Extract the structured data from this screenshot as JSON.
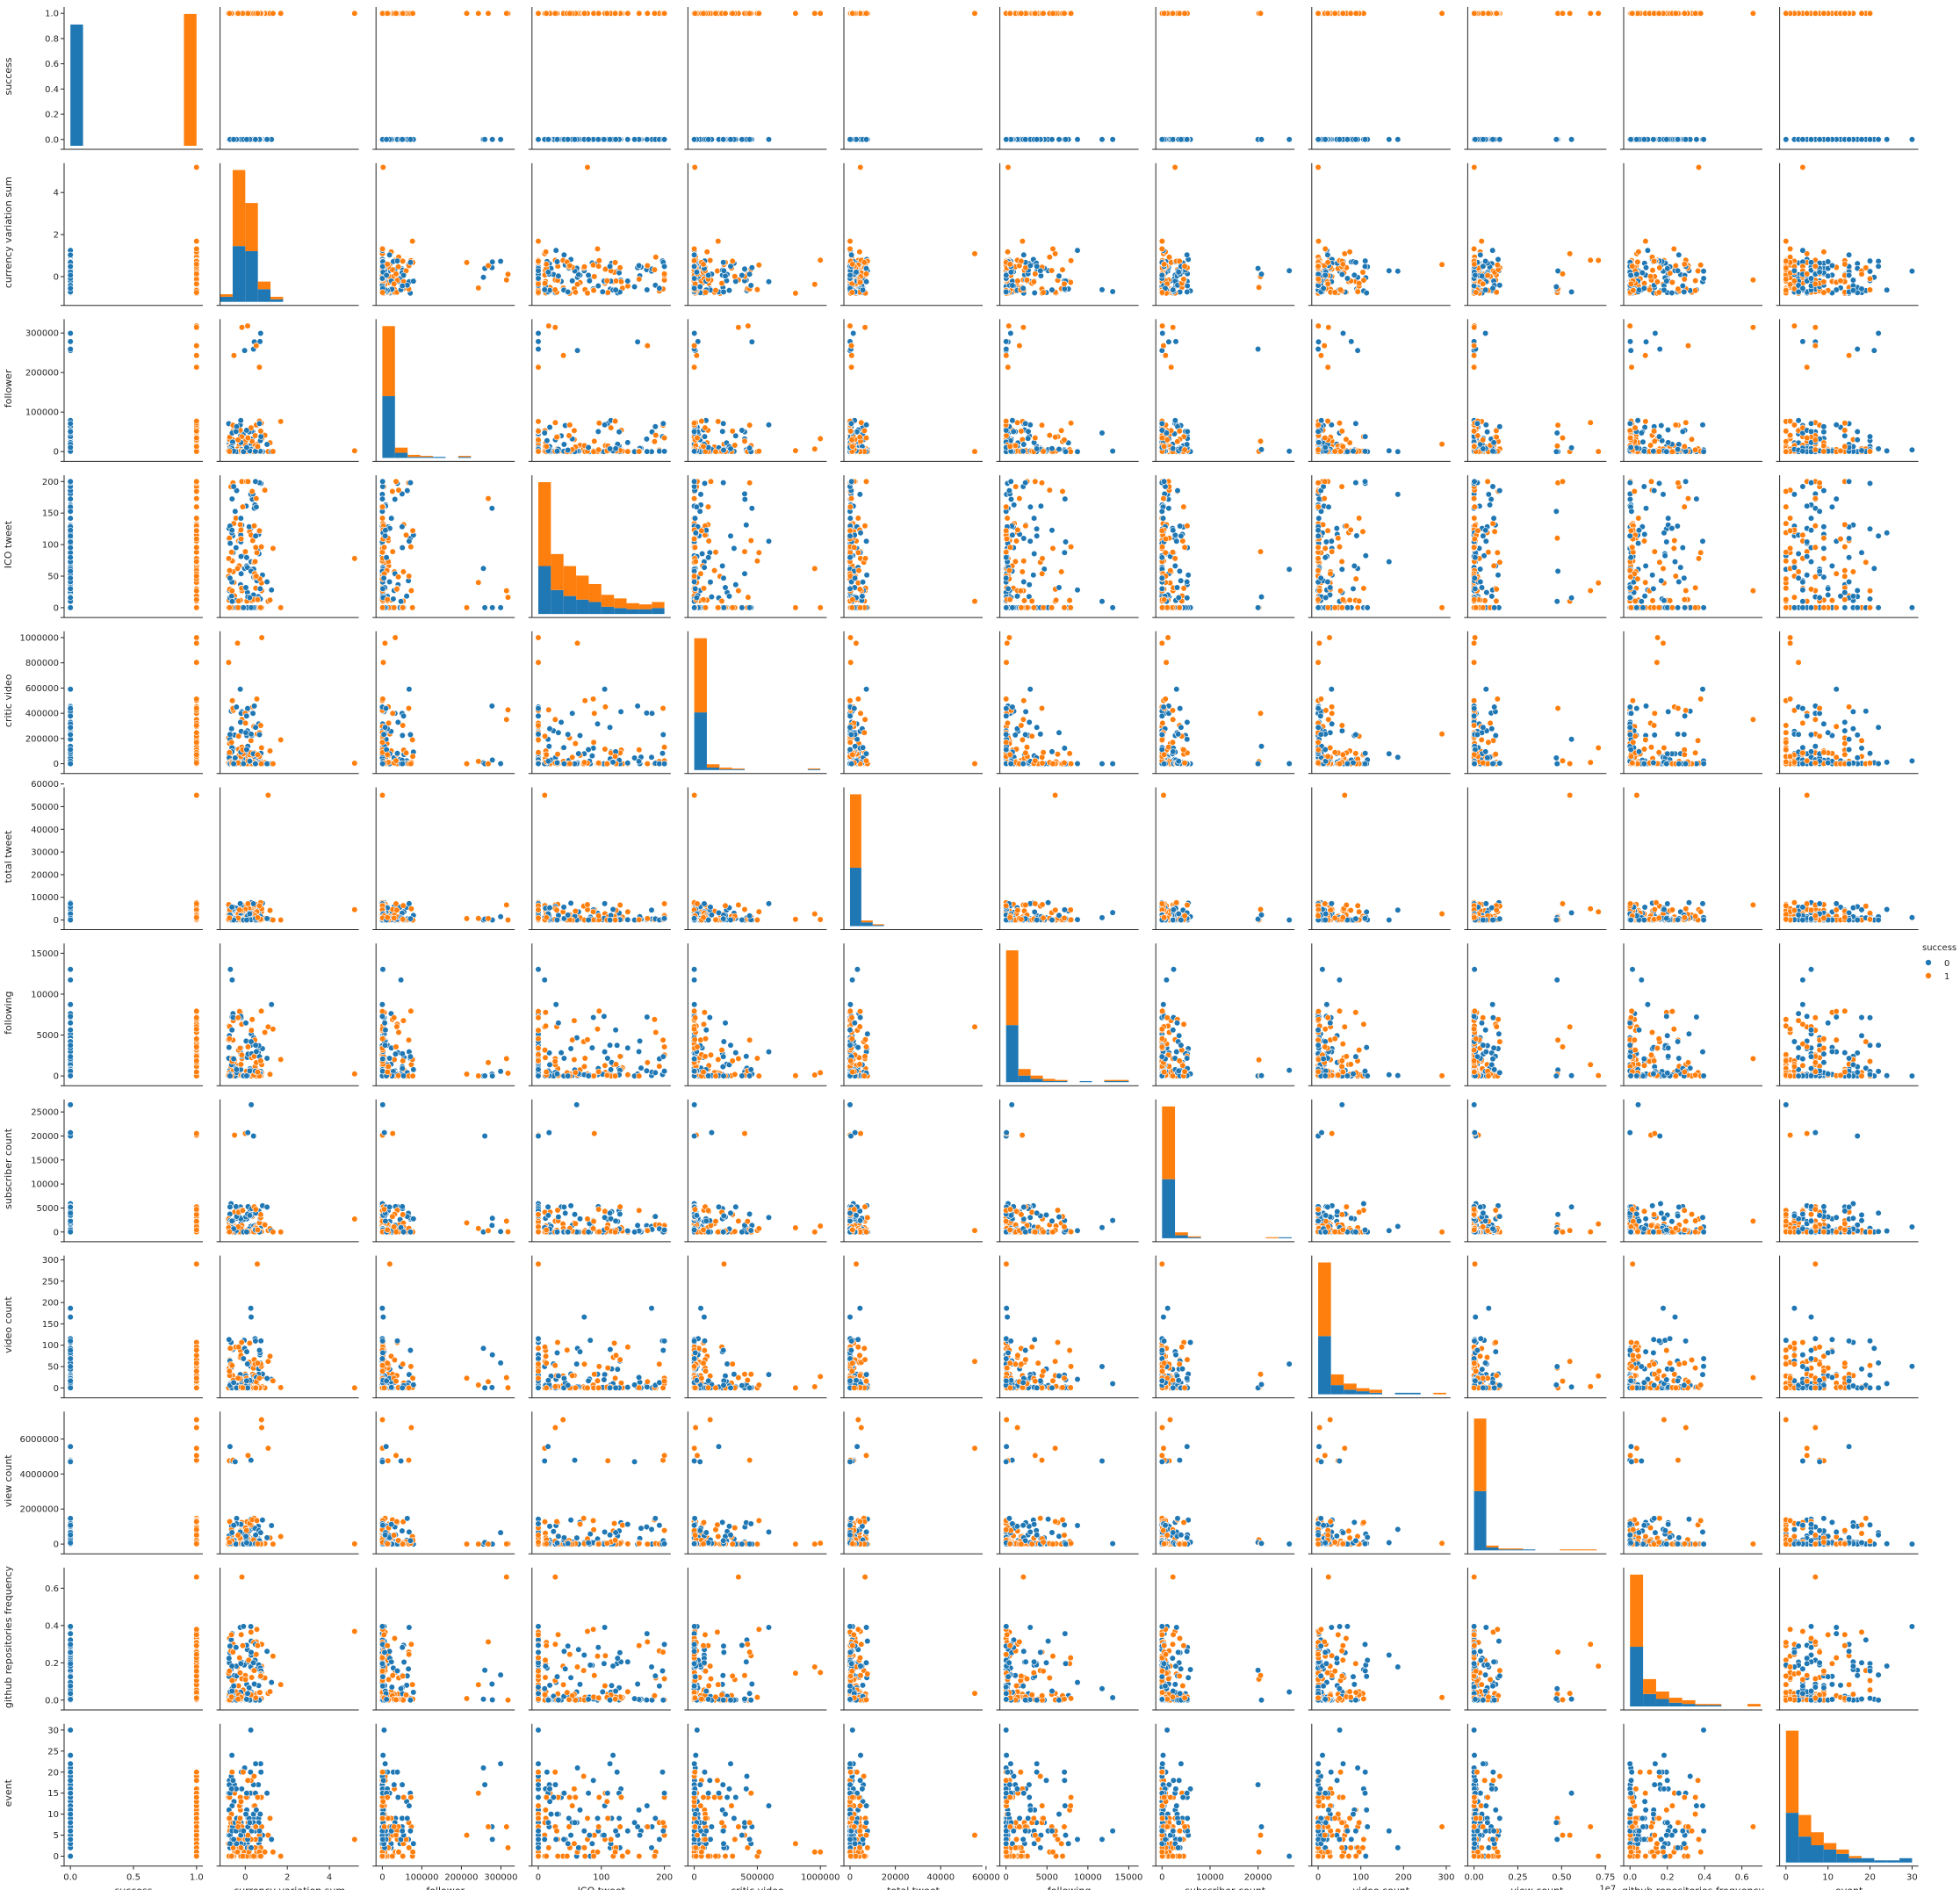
{
  "chart_data": {
    "type": "scatter",
    "kind": "pairplot",
    "diag_kind": "stacked histogram",
    "hue": "success",
    "variables": [
      "success",
      "currency variation sum",
      "follower",
      "ICO tweet",
      "critic video",
      "total tweet",
      "following",
      "subscriber count",
      "video count",
      "view count",
      "github repositories frequency",
      "event"
    ],
    "axes": [
      {
        "name": "success",
        "range": [
          -0.05,
          1.05
        ],
        "ticks": [
          0.0,
          0.2,
          0.4,
          0.6,
          0.8,
          1.0
        ],
        "tick_labels": [
          "0.0",
          "0.2",
          "0.4",
          "0.6",
          "0.8",
          "1.0"
        ],
        "xticks": [
          0.0,
          0.5,
          1.0
        ],
        "xtick_labels": [
          "0.0",
          "0.5",
          "1.0"
        ]
      },
      {
        "name": "currency variation sum",
        "range": [
          -1.2,
          5.4
        ],
        "ticks": [
          0,
          2,
          4
        ],
        "tick_labels": [
          "0",
          "2",
          "4"
        ]
      },
      {
        "name": "follower",
        "range": [
          -16000,
          335000
        ],
        "ticks": [
          0,
          100000,
          200000,
          300000
        ],
        "tick_labels": [
          "0",
          "100000",
          "200000",
          "300000"
        ]
      },
      {
        "name": "ICO tweet",
        "range": [
          -10,
          210
        ],
        "ticks": [
          0,
          50,
          100,
          150,
          200
        ],
        "tick_labels": [
          "0",
          "50",
          "100",
          "150",
          "200"
        ],
        "xticks": [
          0,
          100,
          200
        ],
        "xtick_labels": [
          "0",
          "100",
          "200"
        ]
      },
      {
        "name": "critic video",
        "range": [
          -50000,
          1050000
        ],
        "ticks": [
          0,
          200000,
          400000,
          600000,
          800000,
          1000000
        ],
        "tick_labels": [
          "0",
          "200000",
          "400000",
          "600000",
          "800000",
          "1000000"
        ],
        "xticks": [
          0,
          500000,
          1000000
        ],
        "xtick_labels": [
          "0",
          "500000",
          "1000000"
        ]
      },
      {
        "name": "total tweet",
        "range": [
          -2700,
          58500
        ],
        "ticks": [
          0,
          10000,
          20000,
          30000,
          40000,
          50000,
          60000
        ],
        "tick_labels": [
          "0",
          "10000",
          "20000",
          "30000",
          "40000",
          "50000",
          "60000"
        ],
        "xticks": [
          0,
          20000,
          40000,
          60000
        ],
        "xtick_labels": [
          "0",
          "20000",
          "40000",
          "60000"
        ]
      },
      {
        "name": "following",
        "range": [
          -760,
          16200
        ],
        "ticks": [
          0,
          5000,
          10000,
          15000
        ],
        "tick_labels": [
          "0",
          "5000",
          "10000",
          "15000"
        ]
      },
      {
        "name": "subscriber count",
        "range": [
          -1300,
          27600
        ],
        "ticks": [
          0,
          5000,
          10000,
          15000,
          20000,
          25000
        ],
        "tick_labels": [
          "0",
          "5000",
          "10000",
          "15000",
          "20000",
          "25000"
        ],
        "xticks": [
          0,
          10000,
          20000
        ],
        "xtick_labels": [
          "0",
          "10000",
          "20000"
        ]
      },
      {
        "name": "video count",
        "range": [
          -15,
          310
        ],
        "ticks": [
          0,
          50,
          100,
          150,
          200,
          250,
          300
        ],
        "tick_labels": [
          "0",
          "50",
          "100",
          "150",
          "200",
          "250",
          "300"
        ],
        "xticks": [
          0,
          100,
          200,
          300
        ],
        "xtick_labels": [
          "0",
          "100",
          "200",
          "300"
        ]
      },
      {
        "name": "view count",
        "range": [
          -360000,
          7560000
        ],
        "ticks": [
          0,
          2000000,
          4000000,
          6000000
        ],
        "tick_labels": [
          "0",
          "2000000",
          "4000000",
          "6000000"
        ],
        "xticks": [
          0,
          2500000,
          5000000,
          7500000
        ],
        "xtick_labels": [
          "0.00",
          "0.25",
          "0.50",
          "0.75"
        ],
        "offset_label": "1e7"
      },
      {
        "name": "github repositories frequency",
        "range": [
          -0.034,
          0.71
        ],
        "ticks": [
          0.0,
          0.2,
          0.4,
          0.6
        ],
        "tick_labels": [
          "0.0",
          "0.2",
          "0.4",
          "0.6"
        ]
      },
      {
        "name": "event",
        "range": [
          -1.5,
          31.5
        ],
        "ticks": [
          0,
          5,
          10,
          15,
          20,
          25,
          30
        ],
        "tick_labels": [
          "0",
          "5",
          "10",
          "15",
          "20",
          "25",
          "30"
        ],
        "xticks": [
          0,
          10,
          20,
          30
        ],
        "xtick_labels": [
          "0",
          "10",
          "20",
          "30"
        ]
      }
    ],
    "hue_levels": [
      {
        "value": "0",
        "color": "#1f77b4"
      },
      {
        "value": "1",
        "color": "#ff7f0e"
      }
    ],
    "legend": {
      "title": "success",
      "position": "right",
      "labels": [
        "0",
        "1"
      ]
    },
    "histograms": [
      {
        "edges": [
          0,
          0.1,
          0.2,
          0.3,
          0.4,
          0.5,
          0.6,
          0.7,
          0.8,
          0.9,
          1.0
        ],
        "counts0": [
          0.46,
          0,
          0,
          0,
          0,
          0,
          0,
          0,
          0,
          0
        ],
        "counts1": [
          0,
          0,
          0,
          0,
          0,
          0,
          0,
          0,
          0,
          0.5
        ]
      },
      {
        "edges": [
          -1.2,
          -0.6,
          0,
          0.6,
          1.2,
          1.8
        ],
        "counts0": [
          2,
          22,
          20,
          5,
          1
        ],
        "counts1": [
          1,
          30,
          19,
          3,
          1
        ]
      },
      {
        "edges": [
          0,
          32000,
          64000,
          96000,
          128000,
          160000,
          192000,
          224000
        ],
        "counts0": [
          60,
          5,
          1,
          1,
          1,
          0,
          1
        ],
        "counts1": [
          68,
          5,
          2,
          1,
          0,
          0,
          1
        ]
      },
      {
        "edges": [
          0,
          20,
          40,
          60,
          80,
          100,
          120,
          140,
          160,
          180,
          200
        ],
        "counts0": [
          40,
          20,
          15,
          12,
          10,
          6,
          5,
          4,
          4,
          5
        ],
        "counts1": [
          70,
          30,
          25,
          20,
          15,
          10,
          8,
          5,
          4,
          5
        ]
      },
      {
        "edges": [
          0,
          100000,
          200000,
          300000,
          400000,
          500000,
          600000,
          700000,
          800000,
          900000,
          1000000
        ],
        "counts0": [
          70,
          3,
          1,
          1,
          0,
          0,
          0,
          0,
          0,
          1
        ],
        "counts1": [
          90,
          4,
          2,
          1,
          0,
          0,
          0,
          0,
          0,
          1
        ]
      },
      {
        "edges": [
          0,
          5000,
          10000,
          15000
        ],
        "counts0": [
          62,
          4,
          1
        ],
        "counts1": [
          78,
          2,
          1
        ]
      },
      {
        "edges": [
          0,
          1500,
          3000,
          4500,
          6000,
          7500,
          9000,
          10500,
          12000,
          13500,
          15000
        ],
        "counts0": [
          52,
          6,
          3,
          1,
          1,
          0,
          1,
          0,
          1,
          1
        ],
        "counts1": [
          68,
          6,
          3,
          2,
          1,
          0,
          0,
          0,
          1,
          1
        ]
      },
      {
        "edges": [
          0,
          2700,
          5400,
          8100,
          10800,
          13500,
          16200,
          18900,
          21600,
          24300,
          27000
        ],
        "counts0": [
          60,
          3,
          1,
          0,
          0,
          0,
          0,
          0,
          0,
          1
        ],
        "counts1": [
          74,
          3,
          1,
          0,
          0,
          0,
          0,
          0,
          1,
          0
        ]
      },
      {
        "edges": [
          0,
          30,
          60,
          90,
          120,
          150,
          180,
          210,
          240,
          270,
          300
        ],
        "counts0": [
          38,
          6,
          3,
          2,
          1,
          0,
          1,
          1,
          0,
          0
        ],
        "counts1": [
          48,
          7,
          4,
          2,
          2,
          0,
          0,
          0,
          0,
          1
        ]
      },
      {
        "edges": [
          0,
          700000,
          1400000,
          2100000,
          2800000,
          3500000,
          4200000,
          4900000,
          5600000,
          6300000,
          7000000
        ],
        "counts0": [
          62,
          3,
          1,
          1,
          1,
          0,
          0,
          0,
          0,
          0
        ],
        "counts1": [
          76,
          2,
          1,
          1,
          0,
          0,
          0,
          1,
          1,
          1
        ]
      },
      {
        "edges": [
          0,
          0.07,
          0.14,
          0.21,
          0.28,
          0.35,
          0.42,
          0.49,
          0.56,
          0.63,
          0.7
        ],
        "counts0": [
          48,
          10,
          6,
          3,
          2,
          1,
          1,
          0,
          0,
          0
        ],
        "counts1": [
          58,
          12,
          6,
          4,
          3,
          1,
          1,
          0,
          0,
          2
        ]
      },
      {
        "edges": [
          0,
          3,
          6,
          9,
          12,
          15,
          18,
          21,
          24,
          27,
          30
        ],
        "counts0": [
          23,
          12,
          8,
          6,
          4,
          2,
          2,
          1,
          1,
          2
        ],
        "counts1": [
          38,
          10,
          6,
          3,
          2,
          1,
          0,
          0,
          0,
          0
        ]
      }
    ],
    "scatter_samples": {
      "description": "dense clouds of points per panel; each panel plots the column variable (x) against the row variable (y), colored by success",
      "note": "points approximate the distributions visible in the image"
    }
  }
}
